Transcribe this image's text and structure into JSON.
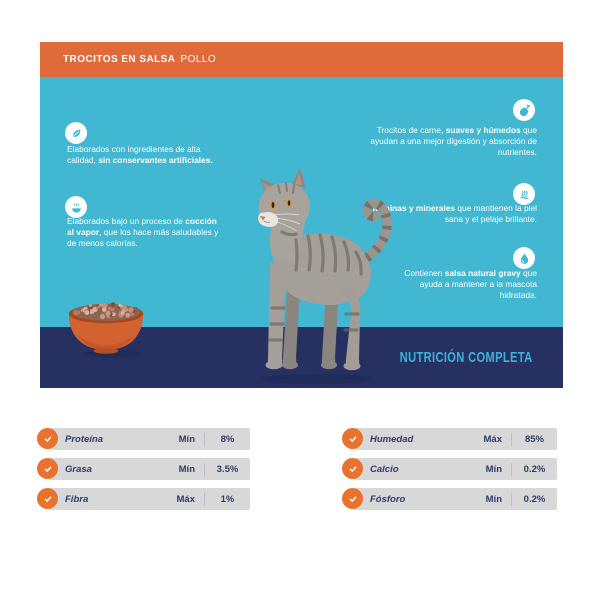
{
  "colors": {
    "orange": "#DF6B3B",
    "orange_check": "#E8722E",
    "teal": "#41B7D1",
    "navy": "#263061",
    "banner_text": "#3CB4D6",
    "row_gray": "#D8D8D8",
    "table_text": "#2E3B69",
    "white": "#FFFFFF"
  },
  "header": {
    "title_bold": "TROCITOS EN SALSA",
    "title_light": "POLLO"
  },
  "features_left": [
    {
      "icon": "leaf-icon",
      "pre": "Elaborados con ingredientes de alta calidad, ",
      "bold": "sin conservantes artificiales.",
      "post": ""
    },
    {
      "icon": "steam-bowl-icon",
      "pre": "Elaborados bajo un proceso de ",
      "bold": "cocción al vapor",
      "post": ", que los hace más saludables y de menos calorías."
    }
  ],
  "features_right": [
    {
      "icon": "meat-icon",
      "pre": "Trocitos de carne, ",
      "bold": "suaves y húmedos",
      "post": " que ayudan a una mejor digestión y absorción de nutrientes."
    },
    {
      "icon": "shiny-coat-icon",
      "pre": "",
      "bold": "Vitaminas y minerales",
      "post": " que mantienen la piel sana y el pelaje brillante."
    },
    {
      "icon": "water-drop-icon",
      "pre": "Contienen ",
      "bold": "salsa natural gravy",
      "post": " que ayuda a mantener a la mascota hidratada."
    }
  ],
  "banner": {
    "label": "NUTRICIÓN COMPLETA"
  },
  "nutrition": {
    "left": [
      {
        "label": "Proteína",
        "limit": "Mín",
        "value": "8%"
      },
      {
        "label": "Grasa",
        "limit": "Mín",
        "value": "3.5%"
      },
      {
        "label": "Fibra",
        "limit": "Máx",
        "value": "1%"
      }
    ],
    "right": [
      {
        "label": "Humedad",
        "limit": "Máx",
        "value": "85%"
      },
      {
        "label": "Calcio",
        "limit": "Mín",
        "value": "0.2%"
      },
      {
        "label": "Fósforo",
        "limit": "Mín",
        "value": "0.2%"
      }
    ]
  }
}
